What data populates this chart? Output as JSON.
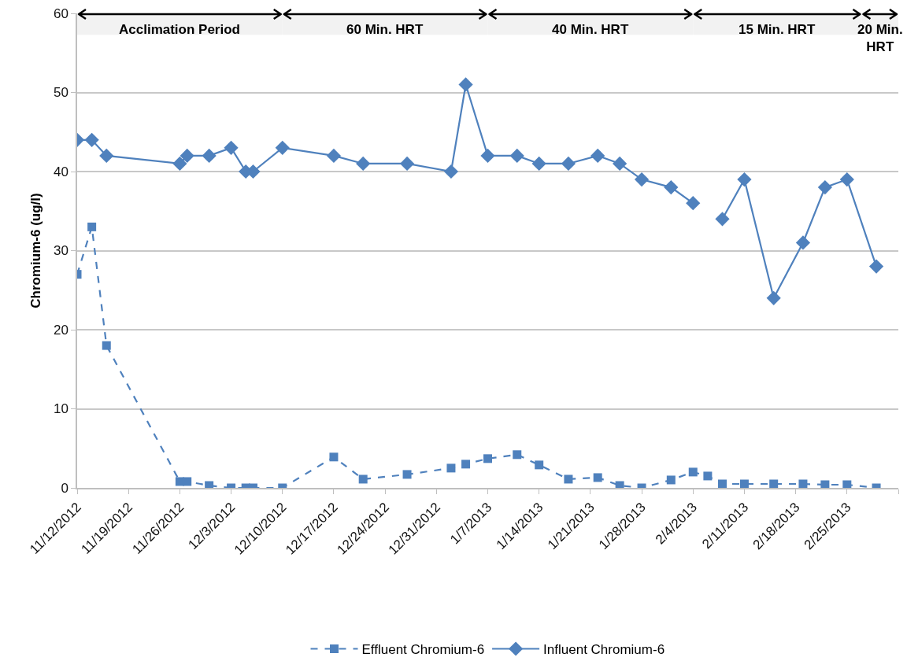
{
  "chart_data": {
    "type": "line",
    "ylabel": "Chromium-6 (ug/l)",
    "x": [
      "2012-11-12",
      "2012-11-14",
      "2012-11-16",
      "2012-11-26",
      "2012-11-27",
      "2012-11-30",
      "2012-12-03",
      "2012-12-05",
      "2012-12-06",
      "2012-12-10",
      "2012-12-17",
      "2012-12-21",
      "2012-12-27",
      "2013-01-02",
      "2013-01-04",
      "2013-01-07",
      "2013-01-11",
      "2013-01-14",
      "2013-01-18",
      "2013-01-22",
      "2013-01-25",
      "2013-01-28",
      "2013-02-01",
      "2013-02-04",
      "2013-02-06",
      "2013-02-08",
      "2013-02-11",
      "2013-02-15",
      "2013-02-19",
      "2013-02-22",
      "2013-02-25",
      "2013-03-01"
    ],
    "series": [
      {
        "name": "Effluent Chromium-6",
        "color": "#4f81bd",
        "marker": "square",
        "line_style": "dashed",
        "values": [
          27,
          33,
          18,
          0.8,
          0.8,
          0.3,
          0,
          0,
          0,
          0,
          3.9,
          1.1,
          1.7,
          2.5,
          3.0,
          3.7,
          4.2,
          2.9,
          1.1,
          1.3,
          0.3,
          0,
          1.0,
          2.0,
          1.5,
          0.5,
          0.5,
          0.5,
          0.5,
          0.4,
          0.4,
          0
        ]
      },
      {
        "name": "Influent Chromium-6",
        "color": "#4f81bd",
        "marker": "diamond",
        "line_style": "solid",
        "values": [
          44,
          44,
          42,
          41,
          42,
          42,
          43,
          40,
          40,
          43,
          42,
          41,
          41,
          40,
          51,
          42,
          42,
          41,
          41,
          42,
          41,
          39,
          38,
          36,
          null,
          34,
          39,
          24,
          31,
          38,
          39,
          28
        ]
      }
    ],
    "xlim": [
      "2012-11-12",
      "2013-03-04"
    ],
    "xticks": [
      {
        "value": "2012-11-12",
        "label": "11/12/2012"
      },
      {
        "value": "2012-11-19",
        "label": "11/19/2012"
      },
      {
        "value": "2012-11-26",
        "label": "11/26/2012"
      },
      {
        "value": "2012-12-03",
        "label": "12/3/2012"
      },
      {
        "value": "2012-12-10",
        "label": "12/10/2012"
      },
      {
        "value": "2012-12-17",
        "label": "12/17/2012"
      },
      {
        "value": "2012-12-24",
        "label": "12/24/2012"
      },
      {
        "value": "2012-12-31",
        "label": "12/31/2012"
      },
      {
        "value": "2013-01-07",
        "label": "1/7/2013"
      },
      {
        "value": "2013-01-14",
        "label": "1/14/2013"
      },
      {
        "value": "2013-01-21",
        "label": "1/21/2013"
      },
      {
        "value": "2013-01-28",
        "label": "1/28/2013"
      },
      {
        "value": "2013-02-04",
        "label": "2/4/2013"
      },
      {
        "value": "2013-02-11",
        "label": "2/11/2013"
      },
      {
        "value": "2013-02-18",
        "label": "2/18/2013"
      },
      {
        "value": "2013-02-25",
        "label": "2/25/2013"
      },
      {
        "value": "2013-03-04",
        "label": null
      }
    ],
    "ylim": [
      0,
      60
    ],
    "yticks": [
      0,
      10,
      20,
      30,
      40,
      50,
      60
    ],
    "grid": "y",
    "legend": "bottom",
    "bands": [
      {
        "axis": "x",
        "from": "2012-11-12",
        "to": "2012-12-10",
        "label": "Acclimation Period"
      },
      {
        "axis": "x",
        "from": "2012-12-10",
        "to": "2013-01-07",
        "label": "60 Min. HRT"
      },
      {
        "axis": "x",
        "from": "2013-01-07",
        "to": "2013-02-04",
        "label": "40 Min. HRT"
      },
      {
        "axis": "x",
        "from": "2013-02-04",
        "to": "2013-02-27",
        "label": "15 Min. HRT"
      },
      {
        "axis": "x",
        "from": "2013-02-27",
        "to": "2013-03-04",
        "label": "20 Min. HRT"
      }
    ]
  }
}
